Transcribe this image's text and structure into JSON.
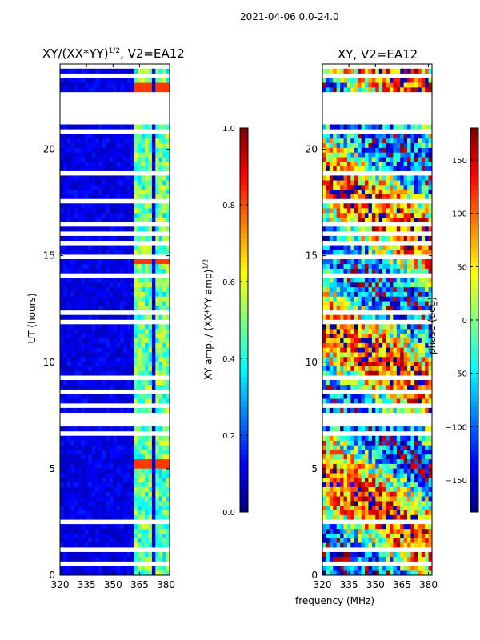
{
  "suptitle": "2021-04-06 0.0-24.0",
  "xlabel": "frequency (MHz)",
  "chart_data": [
    {
      "type": "heatmap",
      "title_main": "XY/(XX*YY)",
      "title_sup": "1/2",
      "title_suffix": ", V2=EA12",
      "ylabel": "UT (hours)",
      "xlim": [
        320,
        382
      ],
      "ylim": [
        0,
        24
      ],
      "xticks": [
        320,
        335,
        350,
        365,
        380
      ],
      "yticks": [
        0,
        5,
        10,
        15,
        20
      ],
      "colorbar": {
        "label": "XY amp. / (XX*YY amp)",
        "label_sup": "1/2",
        "range": [
          0.0,
          1.0
        ],
        "ticks": [
          "0.0",
          "0.2",
          "0.4",
          "0.6",
          "0.8",
          "1.0"
        ],
        "tick_values": [
          0.0,
          0.2,
          0.4,
          0.6,
          0.8,
          1.0
        ],
        "colormap": "jet"
      },
      "hot_bands_freq_mhz": [
        [
          363,
          366
        ],
        [
          366,
          369
        ],
        [
          370,
          372
        ],
        [
          375,
          378
        ],
        [
          379,
          381
        ]
      ],
      "bright_times_hours": [
        22.9,
        14.9,
        5.3
      ]
    },
    {
      "type": "heatmap",
      "title": "XY, V2=EA12",
      "xlim": [
        320,
        382
      ],
      "ylim": [
        0,
        24
      ],
      "xticks": [
        320,
        335,
        350,
        365,
        380
      ],
      "yticks": [
        0,
        5,
        10,
        15,
        20
      ],
      "colorbar": {
        "label": "phase (deg)",
        "range": [
          -180,
          180
        ],
        "ticks": [
          "−150",
          "−100",
          "−50",
          "0",
          "50",
          "100",
          "150"
        ],
        "tick_values": [
          -150,
          -100,
          -50,
          0,
          50,
          100,
          150
        ],
        "colormap": "jet"
      }
    }
  ],
  "data_gaps_hours": [
    [
      21.3,
      22.4
    ],
    [
      11.8,
      12.1
    ],
    [
      9.2,
      9.4
    ],
    [
      7.0,
      7.3
    ],
    [
      6.5,
      6.6
    ],
    [
      1.2,
      1.4
    ],
    [
      0.5,
      0.6
    ]
  ]
}
